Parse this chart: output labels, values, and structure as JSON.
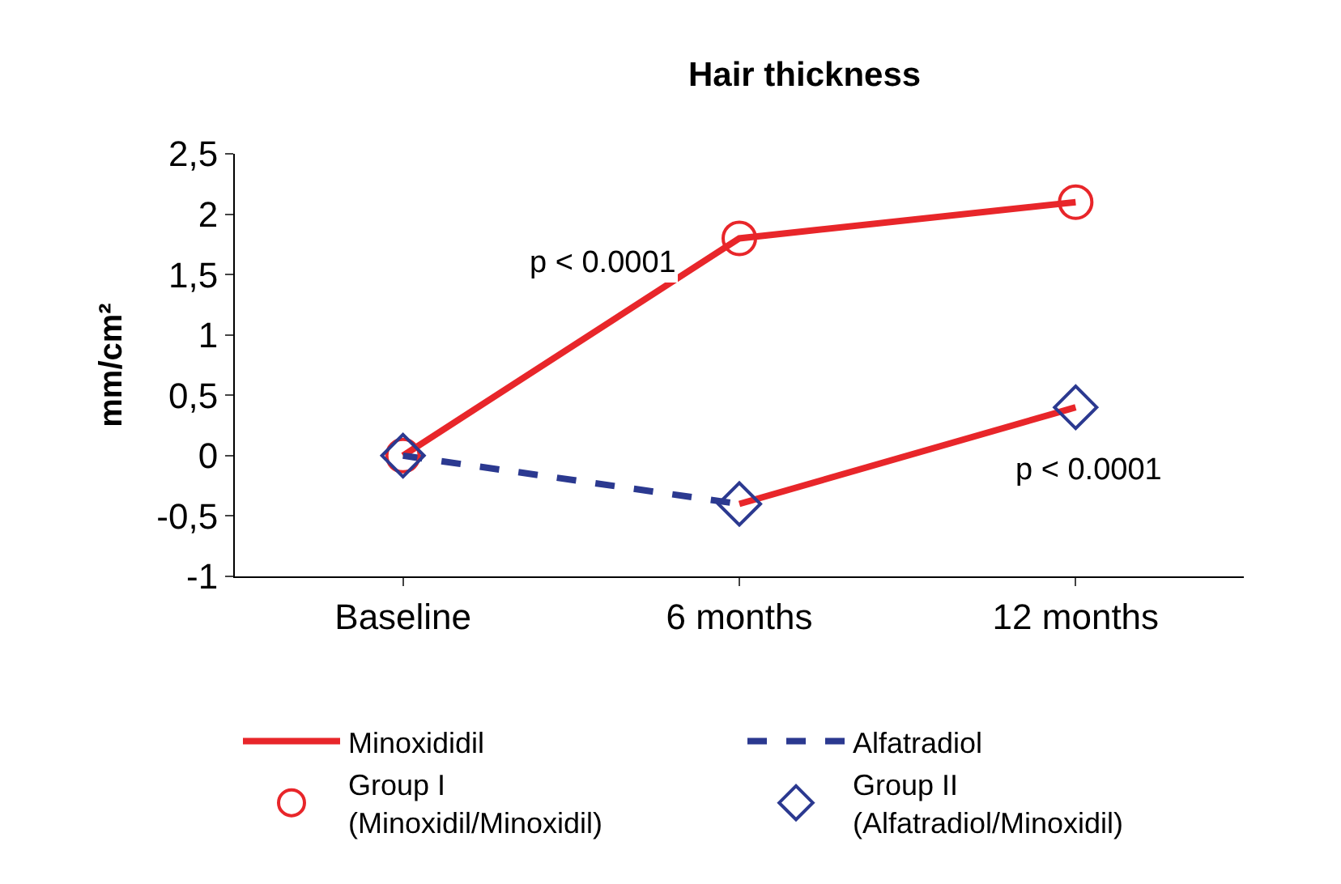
{
  "chart_data": {
    "type": "line",
    "title": "Hair thickness",
    "ylabel": "mm/cm²",
    "categories": [
      "Baseline",
      "6 months",
      "12 months"
    ],
    "ylim": [
      -1,
      2.5
    ],
    "yticks": [
      {
        "value": -1,
        "label": "-1"
      },
      {
        "value": -0.5,
        "label": "-0,5"
      },
      0,
      {
        "value": 0.5,
        "label": "0,5"
      },
      1,
      {
        "value": 1.5,
        "label": "1,5"
      },
      2,
      {
        "value": 2.5,
        "label": "2,5"
      }
    ],
    "legend": "bottom",
    "series": [
      {
        "name": "Minoxididil",
        "color": "#e8262a",
        "line_style": "solid",
        "marker": "none",
        "values": [
          0,
          1.8,
          2.1
        ]
      },
      {
        "name": "Alfatradiol",
        "color": "#2b3990",
        "line_style": "dashed",
        "marker": "none",
        "values": [
          0,
          -0.4,
          null
        ]
      },
      {
        "name": "Group I\n(Minoxidil/Minoxidil)",
        "type": "scatter",
        "color": "#e8262a",
        "marker": "circle",
        "values": [
          0,
          1.8,
          2.1
        ]
      },
      {
        "name": "Group II\n(Alfatradiol/Minoxidil)",
        "type": "scatter",
        "color": "#2b3990",
        "marker": "diamond",
        "values": [
          0,
          -0.4,
          0.4
        ]
      },
      {
        "color": "#e8262a",
        "line_style": "solid",
        "marker": "none",
        "values": [
          null,
          -0.4,
          0.4
        ]
      }
    ],
    "annotations": [
      "p < 0.0001",
      "p < 0.0001"
    ]
  }
}
